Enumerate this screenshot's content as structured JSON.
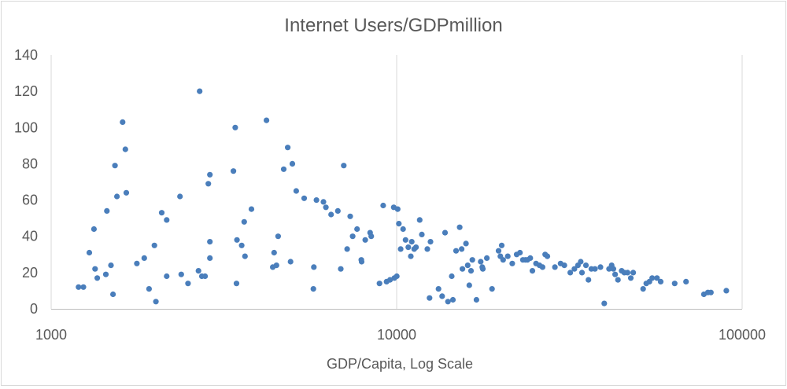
{
  "chart_data": {
    "type": "scatter",
    "title": "Internet Users/GDPmillion",
    "xlabel": "GDP/Capita, Log Scale",
    "ylabel": "",
    "x_scale": "log",
    "xlim": [
      1000,
      100000
    ],
    "ylim": [
      0,
      140
    ],
    "x_ticks": [
      1000,
      10000,
      100000
    ],
    "x_tick_labels": [
      "1000",
      "10000",
      "100000"
    ],
    "y_ticks": [
      0,
      20,
      40,
      60,
      80,
      100,
      120,
      140
    ],
    "y_tick_labels": [
      "0",
      "20",
      "40",
      "60",
      "80",
      "100",
      "120",
      "140"
    ],
    "grid": {
      "horizontal": false,
      "vertical": true
    },
    "legend": "none",
    "marker_color": "#4a7ebb",
    "points": [
      [
        1200,
        12
      ],
      [
        1240,
        12
      ],
      [
        1290,
        31
      ],
      [
        1330,
        44
      ],
      [
        1340,
        22
      ],
      [
        1360,
        17
      ],
      [
        1440,
        19
      ],
      [
        1450,
        54
      ],
      [
        1490,
        24
      ],
      [
        1510,
        8
      ],
      [
        1530,
        79
      ],
      [
        1550,
        62
      ],
      [
        1610,
        103
      ],
      [
        1640,
        88
      ],
      [
        1650,
        64
      ],
      [
        1770,
        25
      ],
      [
        1860,
        28
      ],
      [
        1920,
        11
      ],
      [
        1990,
        35
      ],
      [
        2010,
        4
      ],
      [
        2090,
        53
      ],
      [
        2160,
        49
      ],
      [
        2160,
        18
      ],
      [
        2360,
        62
      ],
      [
        2380,
        19
      ],
      [
        2490,
        14
      ],
      [
        2670,
        21
      ],
      [
        2690,
        120
      ],
      [
        2730,
        18
      ],
      [
        2790,
        18
      ],
      [
        2850,
        69
      ],
      [
        2880,
        74
      ],
      [
        2880,
        37
      ],
      [
        2880,
        28
      ],
      [
        3370,
        76
      ],
      [
        3410,
        100
      ],
      [
        3440,
        14
      ],
      [
        3450,
        38
      ],
      [
        3560,
        35
      ],
      [
        3620,
        48
      ],
      [
        3640,
        29
      ],
      [
        3800,
        55
      ],
      [
        4200,
        104
      ],
      [
        4380,
        23
      ],
      [
        4420,
        31
      ],
      [
        4490,
        24
      ],
      [
        4540,
        40
      ],
      [
        4710,
        77
      ],
      [
        4840,
        89
      ],
      [
        4930,
        26
      ],
      [
        4990,
        80
      ],
      [
        5120,
        65
      ],
      [
        5400,
        61
      ],
      [
        5740,
        11
      ],
      [
        5760,
        23
      ],
      [
        5860,
        60
      ],
      [
        6140,
        59
      ],
      [
        6240,
        56
      ],
      [
        6460,
        52
      ],
      [
        6760,
        54
      ],
      [
        6890,
        22
      ],
      [
        7030,
        79
      ],
      [
        7190,
        33
      ],
      [
        7340,
        51
      ],
      [
        7460,
        40
      ],
      [
        7680,
        44
      ],
      [
        7900,
        27
      ],
      [
        7920,
        26
      ],
      [
        8110,
        38
      ],
      [
        8380,
        42
      ],
      [
        8440,
        40
      ],
      [
        8920,
        14
      ],
      [
        9140,
        57
      ],
      [
        9350,
        15
      ],
      [
        9570,
        16
      ],
      [
        9810,
        56
      ],
      [
        9850,
        17
      ],
      [
        10010,
        18
      ],
      [
        10070,
        55
      ],
      [
        10150,
        47
      ],
      [
        10270,
        33
      ],
      [
        10440,
        44
      ],
      [
        10610,
        38
      ],
      [
        10810,
        34
      ],
      [
        10990,
        29
      ],
      [
        11060,
        37
      ],
      [
        11240,
        33
      ],
      [
        11380,
        34
      ],
      [
        11660,
        49
      ],
      [
        11830,
        41
      ],
      [
        12270,
        33
      ],
      [
        12450,
        6
      ],
      [
        12530,
        37
      ],
      [
        13220,
        11
      ],
      [
        13540,
        7
      ],
      [
        13810,
        42
      ],
      [
        14080,
        4
      ],
      [
        14440,
        18
      ],
      [
        14550,
        5
      ],
      [
        14860,
        32
      ],
      [
        15220,
        45
      ],
      [
        15420,
        33
      ],
      [
        15500,
        22
      ],
      [
        15870,
        36
      ],
      [
        16060,
        24
      ],
      [
        16230,
        13
      ],
      [
        16420,
        21
      ],
      [
        16560,
        27
      ],
      [
        17020,
        5
      ],
      [
        17510,
        26
      ],
      [
        17690,
        23
      ],
      [
        17760,
        22
      ],
      [
        18240,
        28
      ],
      [
        18880,
        11
      ],
      [
        19720,
        32
      ],
      [
        19960,
        29
      ],
      [
        20140,
        35
      ],
      [
        20330,
        27
      ],
      [
        20970,
        29
      ],
      [
        21610,
        25
      ],
      [
        22250,
        30
      ],
      [
        22750,
        31
      ],
      [
        23190,
        27
      ],
      [
        23600,
        27
      ],
      [
        23910,
        27
      ],
      [
        24370,
        28
      ],
      [
        24720,
        21
      ],
      [
        25320,
        25
      ],
      [
        25910,
        24
      ],
      [
        26450,
        23
      ],
      [
        26900,
        30
      ],
      [
        27310,
        29
      ],
      [
        28710,
        23
      ],
      [
        29820,
        25
      ],
      [
        30580,
        24
      ],
      [
        31800,
        20
      ],
      [
        32700,
        22
      ],
      [
        33480,
        24
      ],
      [
        34100,
        26
      ],
      [
        34400,
        20
      ],
      [
        35300,
        24
      ],
      [
        35900,
        16
      ],
      [
        36600,
        22
      ],
      [
        37500,
        22
      ],
      [
        38900,
        23
      ],
      [
        39900,
        3
      ],
      [
        41200,
        22
      ],
      [
        41900,
        24
      ],
      [
        42400,
        22
      ],
      [
        42900,
        19
      ],
      [
        43700,
        16
      ],
      [
        44800,
        21
      ],
      [
        45600,
        20
      ],
      [
        46600,
        20
      ],
      [
        47600,
        17
      ],
      [
        48400,
        20
      ],
      [
        51700,
        11
      ],
      [
        52800,
        14
      ],
      [
        53900,
        15
      ],
      [
        54900,
        17
      ],
      [
        56700,
        17
      ],
      [
        58100,
        15
      ],
      [
        63800,
        14
      ],
      [
        68800,
        15
      ],
      [
        77500,
        8
      ],
      [
        79600,
        9
      ],
      [
        81200,
        9
      ],
      [
        90000,
        10
      ]
    ]
  }
}
